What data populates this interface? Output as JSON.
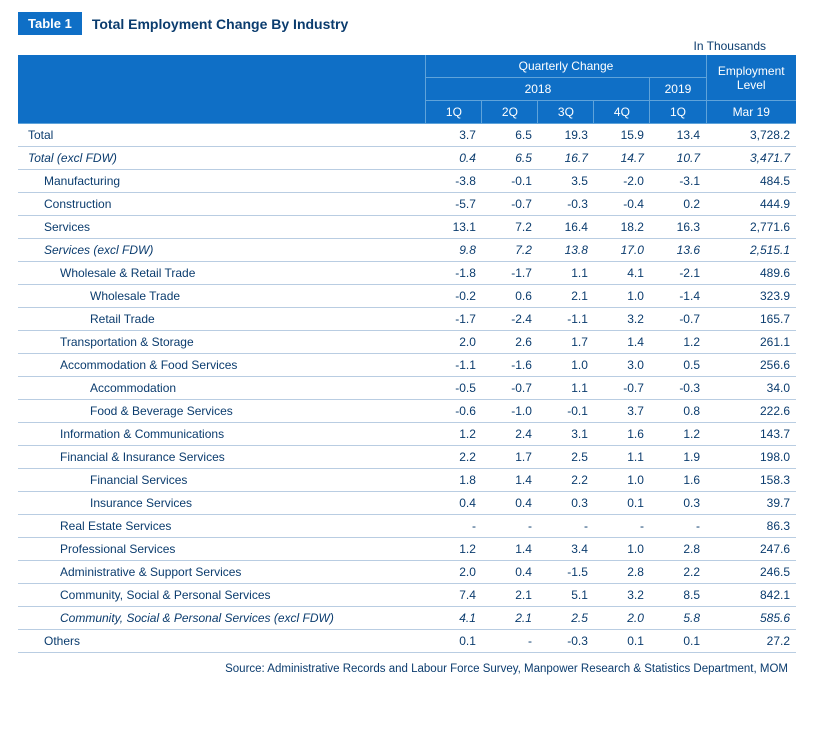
{
  "badge": "Table 1",
  "title": "Total Employment Change By Industry",
  "unit": "In Thousands",
  "header": {
    "quarterly": "Quarterly Change",
    "emp_level": "Employment Level",
    "y2018": "2018",
    "y2019": "2019",
    "q1": "1Q",
    "q2": "2Q",
    "q3": "3Q",
    "q4": "4Q",
    "q1b": "1Q",
    "mar19": "Mar 19"
  },
  "rows": [
    {
      "label": "Total",
      "indent": 0,
      "italic": false,
      "v": [
        "3.7",
        "6.5",
        "19.3",
        "15.9",
        "13.4",
        "3,728.2"
      ]
    },
    {
      "label": "Total (excl FDW)",
      "indent": 0,
      "italic": true,
      "v": [
        "0.4",
        "6.5",
        "16.7",
        "14.7",
        "10.7",
        "3,471.7"
      ]
    },
    {
      "label": "Manufacturing",
      "indent": 1,
      "italic": false,
      "v": [
        "-3.8",
        "-0.1",
        "3.5",
        "-2.0",
        "-3.1",
        "484.5"
      ]
    },
    {
      "label": "Construction",
      "indent": 1,
      "italic": false,
      "v": [
        "-5.7",
        "-0.7",
        "-0.3",
        "-0.4",
        "0.2",
        "444.9"
      ]
    },
    {
      "label": "Services",
      "indent": 1,
      "italic": false,
      "v": [
        "13.1",
        "7.2",
        "16.4",
        "18.2",
        "16.3",
        "2,771.6"
      ]
    },
    {
      "label": "Services (excl FDW)",
      "indent": 1,
      "italic": true,
      "v": [
        "9.8",
        "7.2",
        "13.8",
        "17.0",
        "13.6",
        "2,515.1"
      ]
    },
    {
      "label": "Wholesale & Retail Trade",
      "indent": 2,
      "italic": false,
      "v": [
        "-1.8",
        "-1.7",
        "1.1",
        "4.1",
        "-2.1",
        "489.6"
      ]
    },
    {
      "label": "Wholesale Trade",
      "indent": 3,
      "italic": false,
      "v": [
        "-0.2",
        "0.6",
        "2.1",
        "1.0",
        "-1.4",
        "323.9"
      ]
    },
    {
      "label": "Retail Trade",
      "indent": 3,
      "italic": false,
      "v": [
        "-1.7",
        "-2.4",
        "-1.1",
        "3.2",
        "-0.7",
        "165.7"
      ]
    },
    {
      "label": "Transportation & Storage",
      "indent": 2,
      "italic": false,
      "v": [
        "2.0",
        "2.6",
        "1.7",
        "1.4",
        "1.2",
        "261.1"
      ]
    },
    {
      "label": "Accommodation & Food Services",
      "indent": 2,
      "italic": false,
      "v": [
        "-1.1",
        "-1.6",
        "1.0",
        "3.0",
        "0.5",
        "256.6"
      ]
    },
    {
      "label": "Accommodation",
      "indent": 3,
      "italic": false,
      "v": [
        "-0.5",
        "-0.7",
        "1.1",
        "-0.7",
        "-0.3",
        "34.0"
      ]
    },
    {
      "label": "Food & Beverage Services",
      "indent": 3,
      "italic": false,
      "v": [
        "-0.6",
        "-1.0",
        "-0.1",
        "3.7",
        "0.8",
        "222.6"
      ]
    },
    {
      "label": "Information & Communications",
      "indent": 2,
      "italic": false,
      "v": [
        "1.2",
        "2.4",
        "3.1",
        "1.6",
        "1.2",
        "143.7"
      ]
    },
    {
      "label": "Financial & Insurance Services",
      "indent": 2,
      "italic": false,
      "v": [
        "2.2",
        "1.7",
        "2.5",
        "1.1",
        "1.9",
        "198.0"
      ]
    },
    {
      "label": "Financial Services",
      "indent": 3,
      "italic": false,
      "v": [
        "1.8",
        "1.4",
        "2.2",
        "1.0",
        "1.6",
        "158.3"
      ]
    },
    {
      "label": "Insurance Services",
      "indent": 3,
      "italic": false,
      "v": [
        "0.4",
        "0.4",
        "0.3",
        "0.1",
        "0.3",
        "39.7"
      ]
    },
    {
      "label": "Real Estate Services",
      "indent": 2,
      "italic": false,
      "v": [
        "-",
        "-",
        "-",
        "-",
        "-",
        "86.3"
      ]
    },
    {
      "label": "Professional Services",
      "indent": 2,
      "italic": false,
      "v": [
        "1.2",
        "1.4",
        "3.4",
        "1.0",
        "2.8",
        "247.6"
      ]
    },
    {
      "label": "Administrative & Support Services",
      "indent": 2,
      "italic": false,
      "v": [
        "2.0",
        "0.4",
        "-1.5",
        "2.8",
        "2.2",
        "246.5"
      ]
    },
    {
      "label": "Community, Social & Personal Services",
      "indent": 2,
      "italic": false,
      "v": [
        "7.4",
        "2.1",
        "5.1",
        "3.2",
        "8.5",
        "842.1"
      ]
    },
    {
      "label": "Community, Social & Personal Services (excl FDW)",
      "indent": 2,
      "italic": true,
      "v": [
        "4.1",
        "2.1",
        "2.5",
        "2.0",
        "5.8",
        "585.6"
      ]
    },
    {
      "label": "Others",
      "indent": 1,
      "italic": false,
      "v": [
        "0.1",
        "-",
        "-0.3",
        "0.1",
        "0.1",
        "27.2"
      ]
    }
  ],
  "source": "Source: Administrative Records and Labour Force Survey, Manpower Research & Statistics Department, MOM",
  "colors": {
    "header_bg": "#0f6fc6",
    "header_border": "#5fa3da",
    "body_border": "#b9cde2",
    "text": "#0b3c6e"
  }
}
